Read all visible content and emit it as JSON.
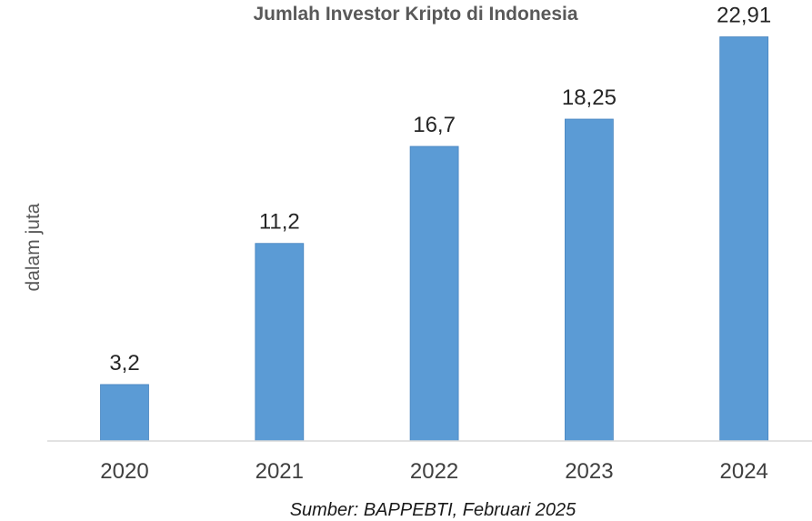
{
  "chart_data": {
    "type": "bar",
    "title": "Jumlah Investor Kripto di Indonesia",
    "ylabel": "dalam juta",
    "xlabel": "",
    "categories": [
      "2020",
      "2021",
      "2022",
      "2023",
      "2024"
    ],
    "values": [
      3.2,
      11.2,
      16.7,
      18.25,
      22.91
    ],
    "value_labels": [
      "3,2",
      "11,2",
      "16,7",
      "18,25",
      "22,91"
    ],
    "ylim": [
      0,
      25
    ],
    "grid": false,
    "legend": "none",
    "bar_color": "#5b9bd5",
    "axis_color": "#d9d9d9",
    "source": "Sumber: BAPPEBTI, Februari 2025"
  }
}
